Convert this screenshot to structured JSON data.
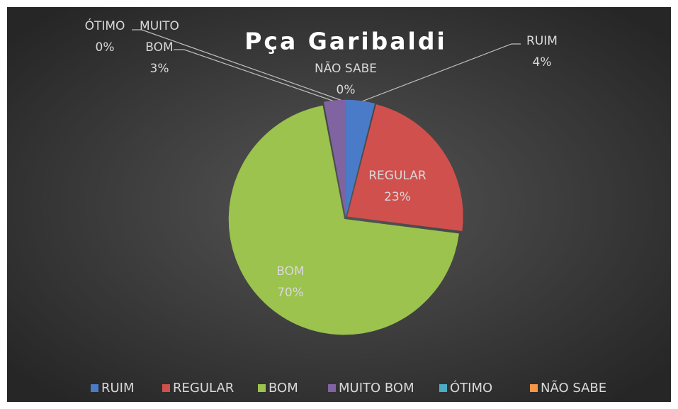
{
  "chart_data": {
    "type": "pie",
    "title": "Pça Garibaldi",
    "categories": [
      "RUIM",
      "REGULAR",
      "BOM",
      "MUITO BOM",
      "ÓTIMO",
      "NÃO SABE"
    ],
    "values": [
      4,
      23,
      70,
      3,
      0,
      0
    ],
    "value_labels": [
      "4%",
      "23%",
      "70%",
      "3%",
      "0%",
      "0%"
    ],
    "colors": [
      "#4a7bc8",
      "#d0504d",
      "#9bc34d",
      "#8064a2",
      "#4bacc6",
      "#f79646"
    ],
    "legend": "bottom"
  }
}
